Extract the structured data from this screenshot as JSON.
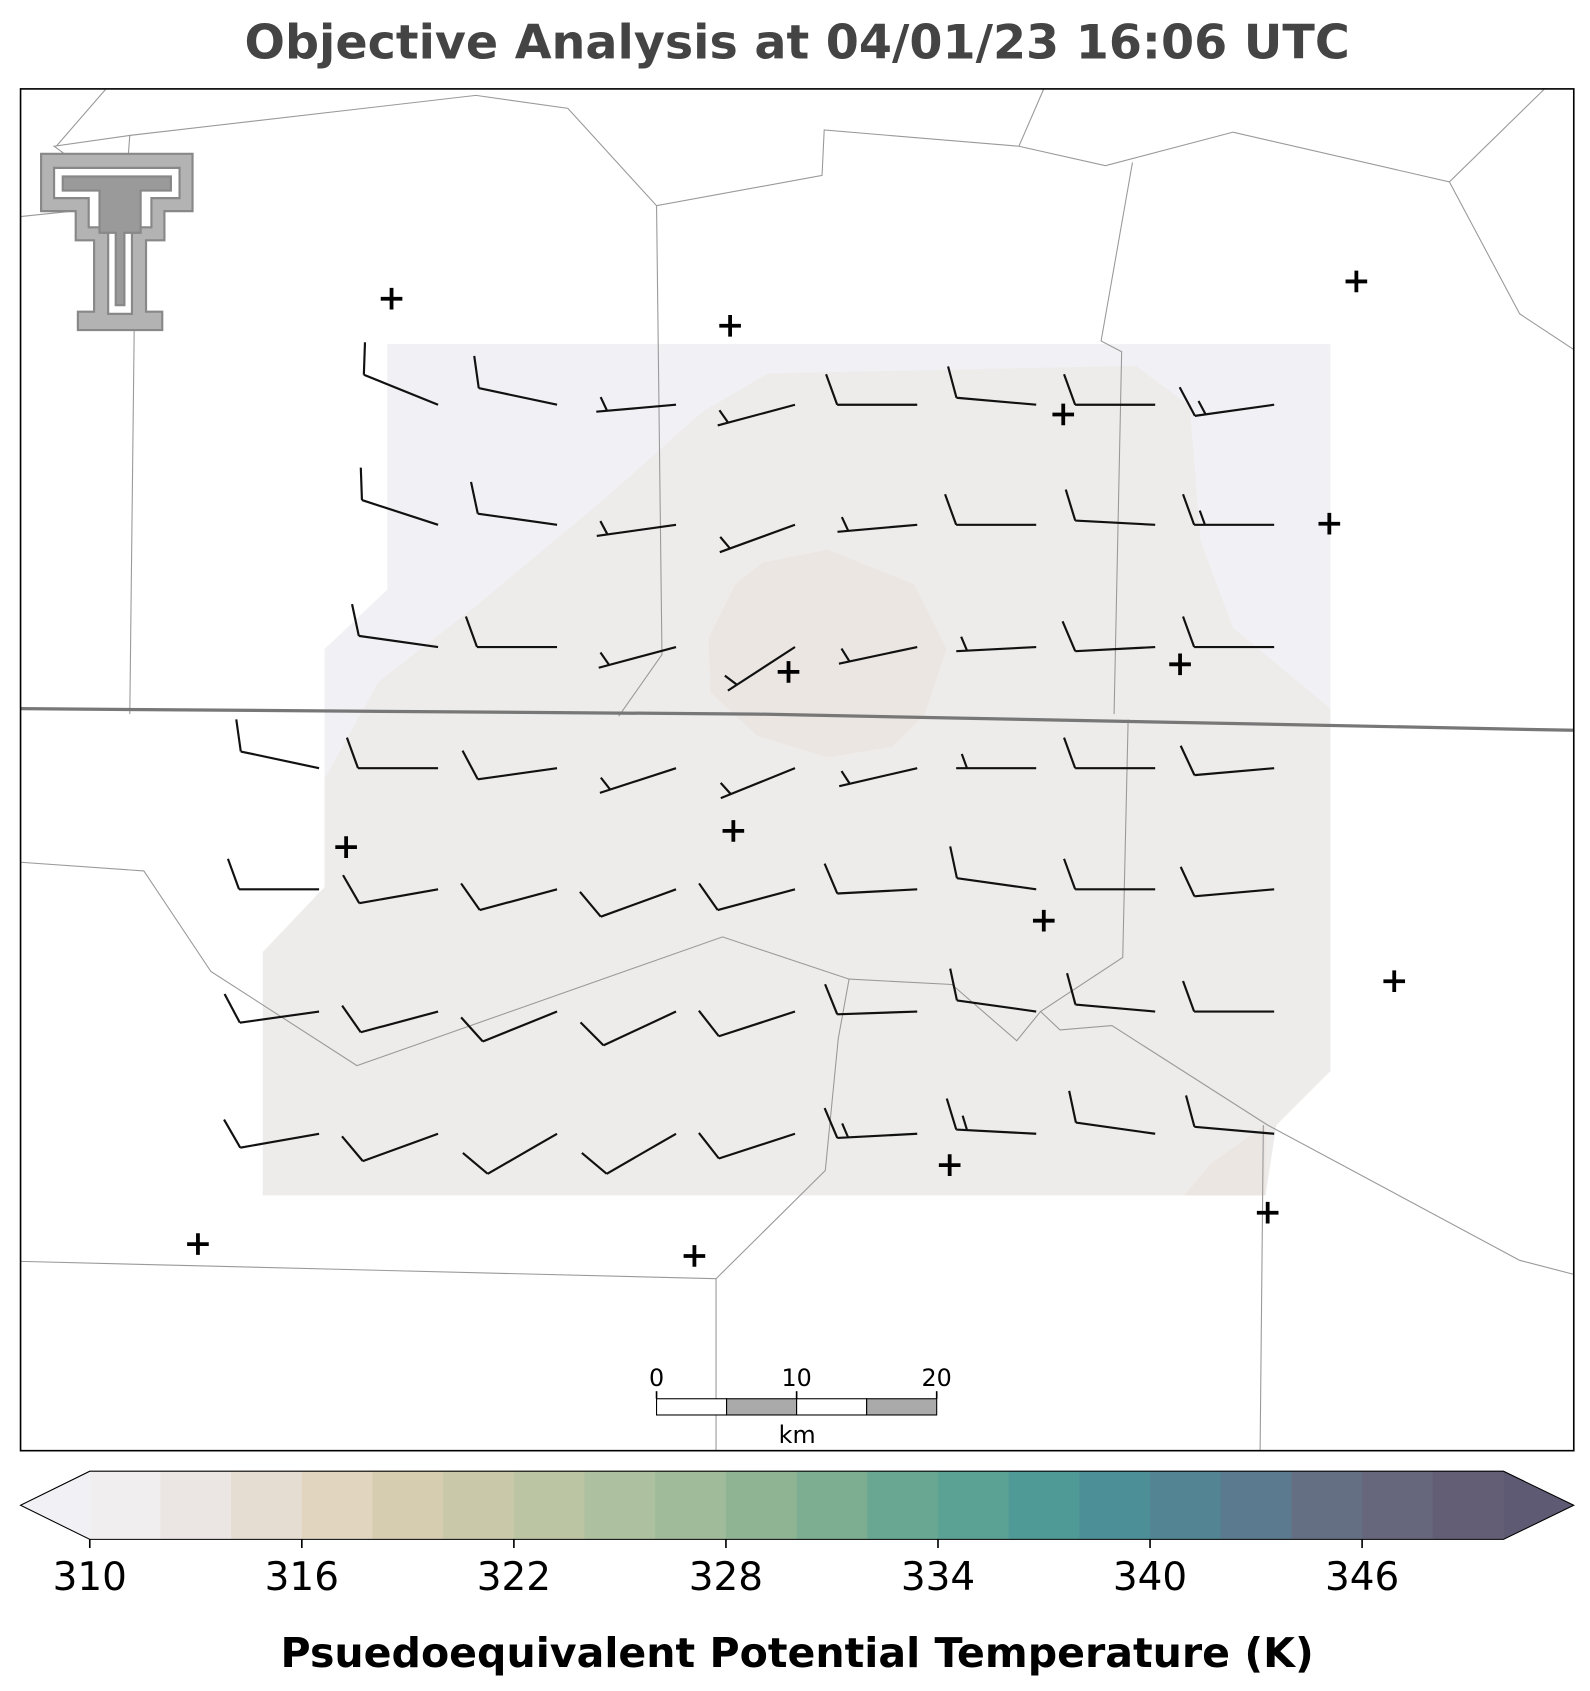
{
  "title": "Objective Analysis at 04/01/23 16:06 UTC",
  "colorbar": {
    "label": "Psuedoequivalent Potential Temperature (K)",
    "lim": [
      310,
      350
    ],
    "ticks": [
      310,
      316,
      322,
      328,
      334,
      340,
      346
    ],
    "colors": [
      "#f0eeee",
      "#ebe5e3",
      "#e6ddd2",
      "#e1d5c0",
      "#d6cdb0",
      "#c9c8a8",
      "#bbc4a3",
      "#adc09f",
      "#9fbb9a",
      "#8fb494",
      "#7dae91",
      "#69a793",
      "#5ba194",
      "#4f9996",
      "#4d8f96",
      "#538494",
      "#5b7a8f",
      "#646f84",
      "#66677d",
      "#635e76"
    ],
    "under_color": "#f1f1f5",
    "over_color": "#5e5a73"
  },
  "scale_bar": {
    "ticks": [
      0,
      10,
      20
    ],
    "unit": "km"
  }
}
